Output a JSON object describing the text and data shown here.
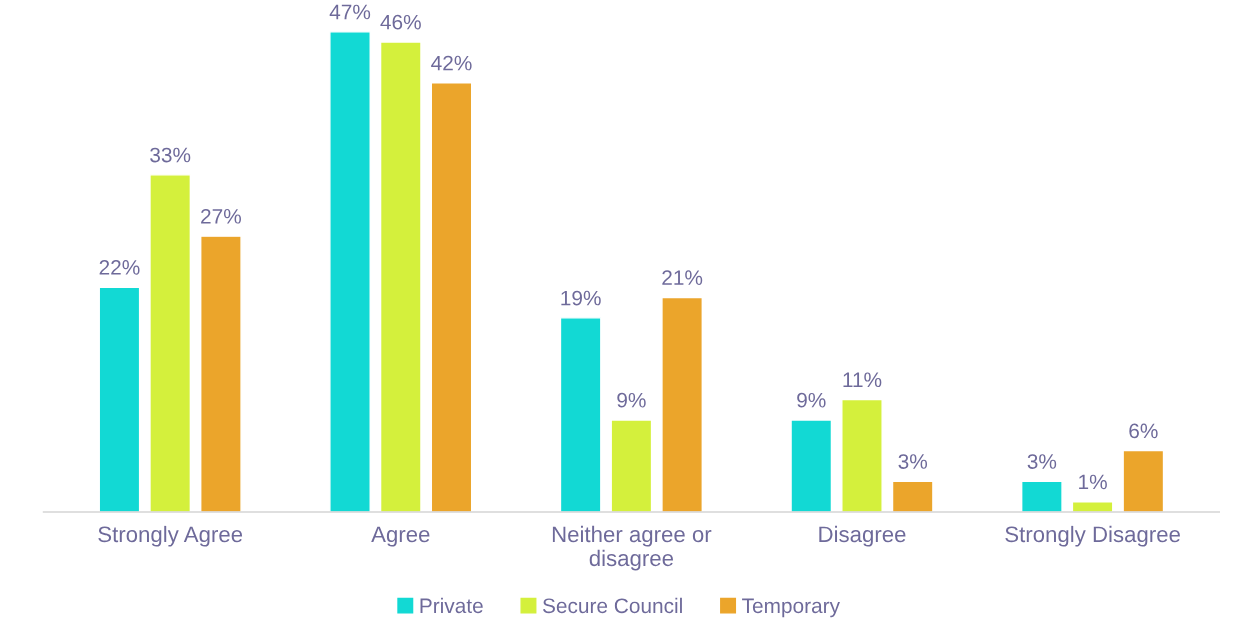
{
  "chart_data": {
    "type": "bar",
    "categories": [
      "Strongly Agree",
      "Agree",
      "Neither agree or\ndisagree",
      "Disagree",
      "Strongly Disagree"
    ],
    "series": [
      {
        "name": "Private",
        "color": "#12d9d4",
        "values": [
          22,
          47,
          19,
          9,
          3
        ],
        "value_labels": [
          "22%",
          "47%",
          "19%",
          "9%",
          "3%"
        ]
      },
      {
        "name": "Secure Council",
        "color": "#d4f03c",
        "values": [
          33,
          46,
          9,
          11,
          1
        ],
        "value_labels": [
          "33%",
          "46%",
          "9%",
          "11%",
          "1%"
        ]
      },
      {
        "name": "Temporary",
        "color": "#eba52b",
        "values": [
          27,
          42,
          21,
          3,
          6
        ],
        "value_labels": [
          "27%",
          "42%",
          "21%",
          "3%",
          "6%"
        ]
      }
    ],
    "legend": "bottom",
    "grid": false
  }
}
